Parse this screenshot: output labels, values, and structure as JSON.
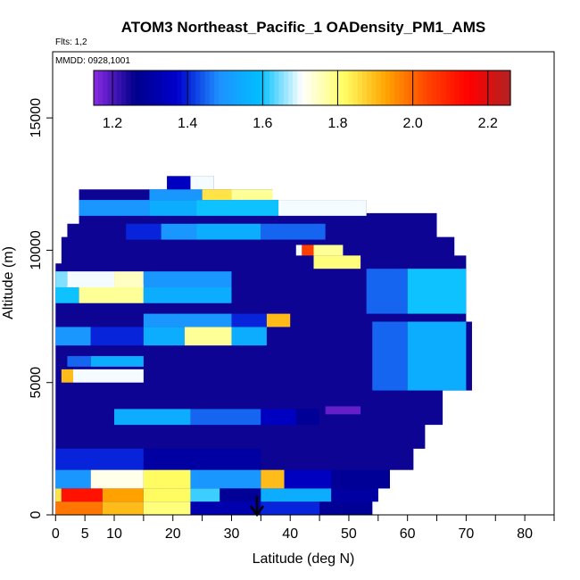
{
  "chart_data": {
    "type": "heatmap",
    "title": "ATOM3 Northeast_Pacific_1 OADensity_PM1_AMS",
    "flights_label": "Flts: 1,2",
    "dates_label": "MMDD: 0928,1001",
    "xlabel": "Latitude (deg N)",
    "ylabel": "Altitude (m)",
    "xlim": [
      -0.5,
      85
    ],
    "ylim": [
      0,
      17500
    ],
    "x_ticks": [
      0,
      5,
      10,
      20,
      30,
      40,
      50,
      60,
      70,
      80
    ],
    "x_minor_ticks": [
      15,
      25,
      35,
      45,
      55,
      65,
      75,
      85
    ],
    "y_ticks": [
      0,
      5000,
      10000,
      15000
    ],
    "colorbar": {
      "min": 1.15,
      "max": 2.26,
      "ticks": [
        1.2,
        1.4,
        1.6,
        1.8,
        2.0,
        2.2
      ],
      "colors": [
        "#8a2be2",
        "#00008b",
        "#0000cd",
        "#1e90ff",
        "#00bfff",
        "#ffffff",
        "#ffff66",
        "#ffa500",
        "#ff4500",
        "#ff0000",
        "#b22222"
      ]
    },
    "background_value": 1.25,
    "bands": [
      {
        "alt": [
          0,
          500
        ],
        "lat": [
          0,
          54
        ],
        "segments": [
          [
            0,
            8,
            1.98
          ],
          [
            8,
            15,
            1.9
          ],
          [
            15,
            23,
            1.8
          ],
          [
            23,
            35,
            1.32
          ],
          [
            35,
            45,
            1.4
          ],
          [
            45,
            54,
            1.28
          ]
        ]
      },
      {
        "alt": [
          500,
          1000
        ],
        "lat": [
          0,
          55
        ],
        "segments": [
          [
            0,
            1,
            1.85
          ],
          [
            1,
            8,
            2.12
          ],
          [
            8,
            15,
            1.93
          ],
          [
            15,
            23,
            1.82
          ],
          [
            23,
            28,
            1.62
          ],
          [
            28,
            35,
            1.28
          ],
          [
            35,
            47,
            1.55
          ],
          [
            47,
            55,
            1.3
          ]
        ]
      },
      {
        "alt": [
          1000,
          1700
        ],
        "lat": [
          0,
          57
        ],
        "segments": [
          [
            0,
            6,
            1.5
          ],
          [
            6,
            15,
            1.72
          ],
          [
            15,
            23,
            1.82
          ],
          [
            23,
            35,
            1.5
          ],
          [
            35,
            39,
            1.9
          ],
          [
            39,
            47,
            1.35
          ],
          [
            47,
            57,
            1.28
          ]
        ]
      },
      {
        "alt": [
          1700,
          2500
        ],
        "lat": [
          0,
          61
        ],
        "segments": [
          [
            0,
            15,
            1.4
          ],
          [
            15,
            35,
            1.3
          ],
          [
            35,
            61,
            1.25
          ]
        ]
      },
      {
        "alt": [
          3400,
          4000
        ],
        "lat": [
          10,
          45
        ],
        "segments": [
          [
            10,
            23,
            1.55
          ],
          [
            23,
            35,
            1.45
          ],
          [
            35,
            41,
            1.35
          ],
          [
            41,
            45,
            1.28
          ]
        ]
      },
      {
        "alt": [
          3800,
          4100
        ],
        "lat": [
          46,
          52
        ],
        "segments": [
          [
            46,
            52,
            1.18
          ]
        ]
      },
      {
        "alt": [
          5000,
          5500
        ],
        "lat": [
          1,
          15
        ],
        "segments": [
          [
            1,
            3,
            1.9
          ],
          [
            3,
            15,
            1.7
          ]
        ]
      },
      {
        "alt": [
          5600,
          6000
        ],
        "lat": [
          2,
          30
        ],
        "segments": [
          [
            2,
            6,
            1.45
          ],
          [
            6,
            15,
            1.55
          ]
        ]
      },
      {
        "alt": [
          4700,
          7300
        ],
        "lat": [
          54,
          70
        ],
        "segments": [
          [
            54,
            60,
            1.45
          ],
          [
            60,
            70,
            1.55
          ]
        ]
      },
      {
        "alt": [
          6400,
          7100
        ],
        "lat": [
          0,
          36
        ],
        "segments": [
          [
            0,
            6,
            1.5
          ],
          [
            6,
            15,
            1.4
          ],
          [
            15,
            22,
            1.55
          ],
          [
            22,
            30,
            1.78
          ],
          [
            30,
            36,
            1.55
          ]
        ]
      },
      {
        "alt": [
          7100,
          7600
        ],
        "lat": [
          15,
          40
        ],
        "segments": [
          [
            15,
            30,
            1.5
          ],
          [
            30,
            36,
            1.4
          ],
          [
            36,
            40,
            1.9
          ]
        ]
      },
      {
        "alt": [
          8000,
          8700
        ],
        "lat": [
          0,
          30
        ],
        "segments": [
          [
            0,
            4,
            1.6
          ],
          [
            4,
            15,
            1.78
          ],
          [
            15,
            30,
            1.55
          ]
        ]
      },
      {
        "alt": [
          8600,
          9200
        ],
        "lat": [
          0,
          35
        ],
        "segments": [
          [
            0,
            2,
            1.65
          ],
          [
            2,
            10,
            1.7
          ],
          [
            10,
            15,
            1.75
          ],
          [
            15,
            30,
            1.5
          ]
        ]
      },
      {
        "alt": [
          7600,
          9300
        ],
        "lat": [
          53,
          70
        ],
        "segments": [
          [
            53,
            60,
            1.45
          ],
          [
            60,
            70,
            1.6
          ]
        ]
      },
      {
        "alt": [
          9300,
          9800
        ],
        "lat": [
          44,
          52
        ],
        "segments": [
          [
            44,
            52,
            1.8
          ]
        ]
      },
      {
        "alt": [
          9800,
          10200
        ],
        "lat": [
          41,
          49
        ],
        "segments": [
          [
            41,
            42,
            1.7
          ],
          [
            42,
            44,
            2.05
          ],
          [
            44,
            49,
            1.78
          ]
        ]
      },
      {
        "alt": [
          10400,
          11000
        ],
        "lat": [
          12,
          46
        ],
        "segments": [
          [
            12,
            18,
            1.4
          ],
          [
            18,
            24,
            1.5
          ],
          [
            24,
            35,
            1.55
          ],
          [
            35,
            46,
            1.45
          ]
        ]
      },
      {
        "alt": [
          11300,
          11900
        ],
        "lat": [
          4,
          53
        ],
        "segments": [
          [
            4,
            16,
            1.5
          ],
          [
            16,
            24,
            1.55
          ],
          [
            24,
            38,
            1.6
          ],
          [
            38,
            53,
            1.7
          ]
        ]
      },
      {
        "alt": [
          11900,
          12300
        ],
        "lat": [
          16,
          37
        ],
        "segments": [
          [
            16,
            25,
            1.5
          ],
          [
            25,
            30,
            1.85
          ],
          [
            30,
            37,
            1.78
          ]
        ]
      },
      {
        "alt": [
          12300,
          12800
        ],
        "lat": [
          19,
          27
        ],
        "segments": [
          [
            19,
            23,
            1.35
          ],
          [
            23,
            27,
            1.7
          ]
        ]
      }
    ]
  }
}
